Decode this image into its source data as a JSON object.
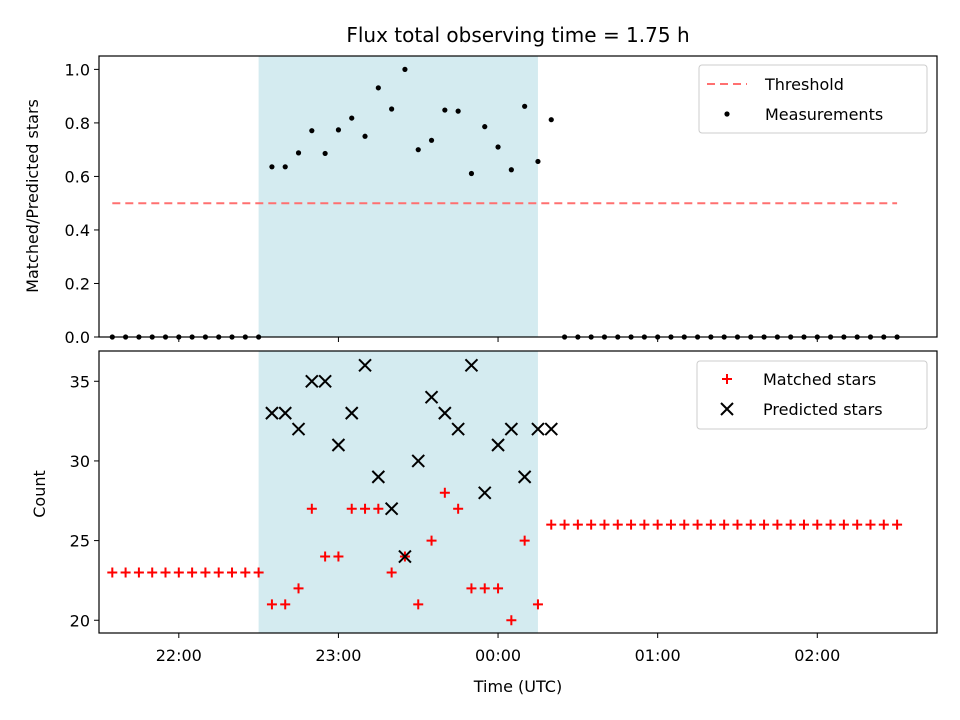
{
  "chart_data": [
    {
      "type": "scatter",
      "title": "Flux total observing time = 1.75 h",
      "xlabel": "",
      "ylabel": "Matched/Predicted stars",
      "xlim": [
        "21:30",
        "02:45"
      ],
      "ylim": [
        0,
        1.05
      ],
      "yticks": [
        "0.0",
        "0.2",
        "0.4",
        "0.6",
        "0.8",
        "1.0"
      ],
      "shaded_interval": {
        "start": "22:30",
        "end": "00:15",
        "color": "#d4ebf0"
      },
      "grid": false,
      "legend": {
        "position": "top-right",
        "entries": [
          "Threshold",
          "Measurements"
        ]
      },
      "threshold": {
        "name": "Threshold",
        "x": [
          "21:35",
          "02:30"
        ],
        "y": 0.5,
        "color": "#ff7070",
        "style": "dashed"
      },
      "series": [
        {
          "name": "Measurements",
          "marker": "dot",
          "color": "#000000",
          "x": [
            "21:35",
            "21:40",
            "21:45",
            "21:50",
            "21:55",
            "22:00",
            "22:05",
            "22:10",
            "22:15",
            "22:20",
            "22:25",
            "22:30",
            "22:35",
            "22:40",
            "22:45",
            "22:50",
            "22:55",
            "23:00",
            "23:05",
            "23:10",
            "23:15",
            "23:20",
            "23:25",
            "23:30",
            "23:35",
            "23:40",
            "23:45",
            "23:50",
            "23:55",
            "00:00",
            "00:05",
            "00:10",
            "00:15",
            "00:20",
            "00:25",
            "00:30",
            "00:35",
            "00:40",
            "00:45",
            "00:50",
            "00:55",
            "01:00",
            "01:05",
            "01:10",
            "01:15",
            "01:20",
            "01:25",
            "01:30",
            "01:35",
            "01:40",
            "01:45",
            "01:50",
            "01:55",
            "02:00",
            "02:05",
            "02:10",
            "02:15",
            "02:20",
            "02:25",
            "02:30"
          ],
          "y": [
            0,
            0,
            0,
            0,
            0,
            0,
            0,
            0,
            0,
            0,
            0,
            0,
            0.636,
            0.636,
            0.688,
            0.771,
            0.686,
            0.774,
            0.818,
            0.75,
            0.931,
            0.852,
            1.0,
            0.7,
            0.735,
            0.848,
            0.844,
            0.611,
            0.786,
            0.71,
            0.625,
            0.862,
            0.656,
            0.812,
            0,
            0,
            0,
            0,
            0,
            0,
            0,
            0,
            0,
            0,
            0,
            0,
            0,
            0,
            0,
            0,
            0,
            0,
            0,
            0,
            0,
            0,
            0,
            0,
            0,
            0
          ]
        }
      ]
    },
    {
      "type": "scatter",
      "title": "",
      "xlabel": "Time (UTC)",
      "ylabel": "Count",
      "xlim": [
        "21:30",
        "02:45"
      ],
      "ylim": [
        19.2,
        36.9
      ],
      "xticks": [
        "22:00",
        "23:00",
        "00:00",
        "01:00",
        "02:00"
      ],
      "yticks": [
        "20",
        "25",
        "30",
        "35"
      ],
      "shaded_interval": {
        "start": "22:30",
        "end": "00:15",
        "color": "#d4ebf0"
      },
      "grid": false,
      "legend": {
        "position": "top-right",
        "entries": [
          "Matched stars",
          "Predicted stars"
        ]
      },
      "series": [
        {
          "name": "Matched stars",
          "marker": "plus",
          "color": "#ff0000",
          "x": [
            "21:35",
            "21:40",
            "21:45",
            "21:50",
            "21:55",
            "22:00",
            "22:05",
            "22:10",
            "22:15",
            "22:20",
            "22:25",
            "22:30",
            "22:35",
            "22:40",
            "22:45",
            "22:50",
            "22:55",
            "23:00",
            "23:05",
            "23:10",
            "23:15",
            "23:20",
            "23:25",
            "23:30",
            "23:35",
            "23:40",
            "23:45",
            "23:50",
            "23:55",
            "00:00",
            "00:05",
            "00:10",
            "00:15",
            "00:20",
            "00:25",
            "00:30",
            "00:35",
            "00:40",
            "00:45",
            "00:50",
            "00:55",
            "01:00",
            "01:05",
            "01:10",
            "01:15",
            "01:20",
            "01:25",
            "01:30",
            "01:35",
            "01:40",
            "01:45",
            "01:50",
            "01:55",
            "02:00",
            "02:05",
            "02:10",
            "02:15",
            "02:20",
            "02:25",
            "02:30"
          ],
          "y": [
            23,
            23,
            23,
            23,
            23,
            23,
            23,
            23,
            23,
            23,
            23,
            23,
            21,
            21,
            22,
            27,
            24,
            24,
            27,
            27,
            27,
            23,
            24,
            21,
            25,
            28,
            27,
            22,
            22,
            22,
            20,
            25,
            21,
            26,
            26,
            26,
            26,
            26,
            26,
            26,
            26,
            26,
            26,
            26,
            26,
            26,
            26,
            26,
            26,
            26,
            26,
            26,
            26,
            26,
            26,
            26,
            26,
            26,
            26,
            26
          ]
        },
        {
          "name": "Predicted stars",
          "marker": "x",
          "color": "#000000",
          "x": [
            "22:35",
            "22:40",
            "22:45",
            "22:50",
            "22:55",
            "23:00",
            "23:05",
            "23:10",
            "23:15",
            "23:20",
            "23:25",
            "23:30",
            "23:35",
            "23:40",
            "23:45",
            "23:50",
            "23:55",
            "00:00",
            "00:05",
            "00:10",
            "00:15",
            "00:20"
          ],
          "y": [
            33,
            33,
            32,
            35,
            35,
            31,
            33,
            36,
            29,
            27,
            24,
            30,
            34,
            33,
            32,
            36,
            28,
            31,
            32,
            29,
            32,
            32
          ]
        }
      ]
    }
  ]
}
